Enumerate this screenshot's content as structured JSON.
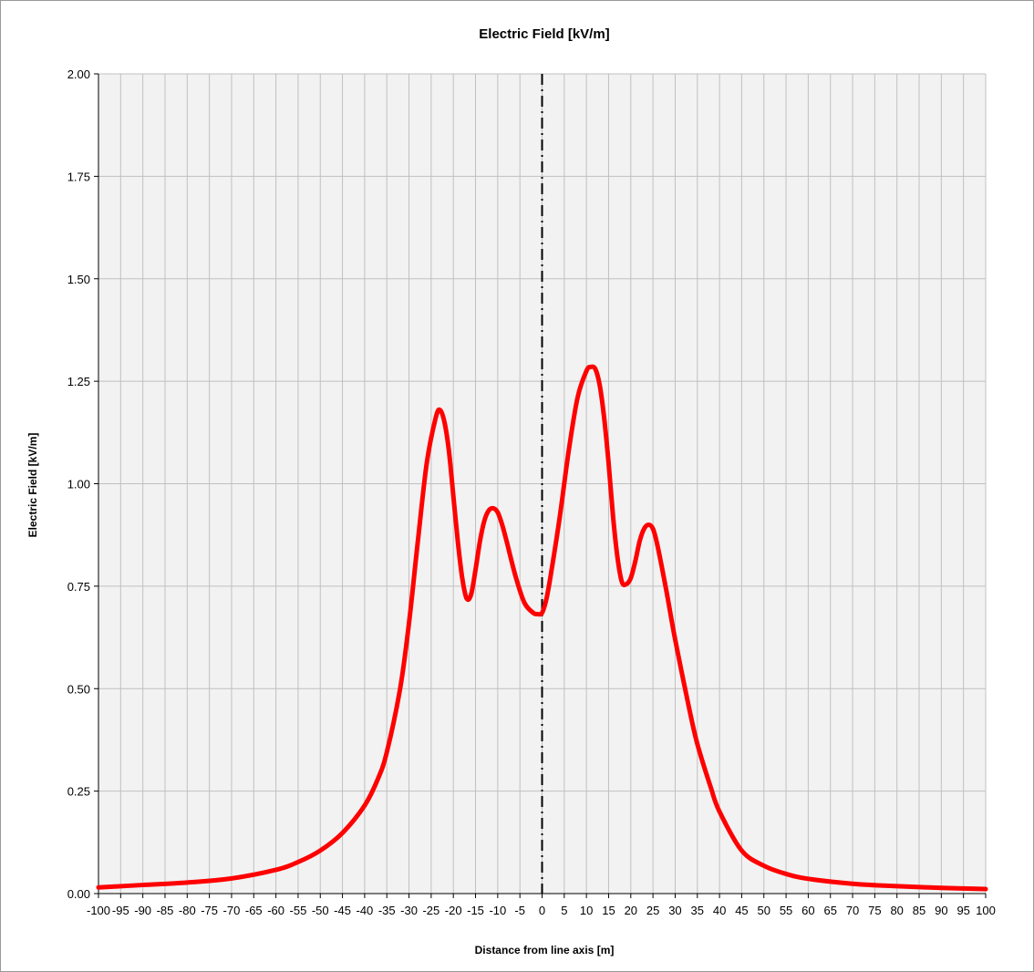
{
  "chart_data": {
    "type": "line",
    "title": "Electric Field [kV/m]",
    "xlabel": "Distance from line axis [m]",
    "ylabel": "Electric Field  [kV/m]",
    "xlim": [
      -100,
      100
    ],
    "ylim": [
      0,
      2
    ],
    "x_ticks": [
      "-100",
      "-95",
      "-90",
      "-85",
      "-80",
      "-75",
      "-70",
      "-65",
      "-60",
      "-55",
      "-50",
      "-45",
      "-40",
      "-35",
      "-30",
      "-25",
      "-20",
      "-15",
      "-10",
      "-5",
      "0",
      "5",
      "10",
      "15",
      "20",
      "25",
      "30",
      "35",
      "40",
      "45",
      "50",
      "55",
      "60",
      "65",
      "70",
      "75",
      "80",
      "85",
      "90",
      "95",
      "100"
    ],
    "y_ticks": [
      "0.00",
      "0.25",
      "0.50",
      "0.75",
      "1.00",
      "1.25",
      "1.50",
      "1.75",
      "2.00"
    ],
    "grid": true,
    "grid_x_step": 5,
    "grid_y_step": 0.25,
    "plot_background": "#f2f2f2",
    "grid_color": "#c0c0c0",
    "centerline": {
      "x": 0,
      "style": "dash-dot",
      "color": "#000000"
    },
    "series": [
      {
        "color": "#ff0000",
        "x": [
          -100,
          -90,
          -80,
          -70,
          -60,
          -55,
          -50,
          -45,
          -40,
          -37,
          -35,
          -32,
          -30,
          -28,
          -26,
          -24,
          -23,
          -22,
          -21,
          -20,
          -19,
          -18,
          -17,
          -16,
          -15,
          -14,
          -13,
          -12,
          -11,
          -10,
          -9,
          -8,
          -6,
          -4,
          -2,
          -1,
          0,
          1,
          2,
          4,
          6,
          8,
          10,
          11,
          12,
          13,
          14,
          15,
          16,
          17,
          18,
          19,
          20,
          21,
          22,
          23,
          24,
          25,
          26,
          28,
          30,
          33,
          35,
          38,
          40,
          45,
          50,
          55,
          60,
          70,
          80,
          90,
          100
        ],
        "y": [
          0.015,
          0.021,
          0.027,
          0.037,
          0.058,
          0.077,
          0.105,
          0.148,
          0.215,
          0.28,
          0.345,
          0.5,
          0.66,
          0.86,
          1.05,
          1.16,
          1.18,
          1.15,
          1.08,
          0.97,
          0.86,
          0.77,
          0.72,
          0.73,
          0.79,
          0.86,
          0.91,
          0.935,
          0.94,
          0.93,
          0.9,
          0.86,
          0.775,
          0.71,
          0.685,
          0.682,
          0.685,
          0.72,
          0.78,
          0.92,
          1.08,
          1.21,
          1.275,
          1.285,
          1.28,
          1.24,
          1.16,
          1.05,
          0.92,
          0.82,
          0.76,
          0.755,
          0.77,
          0.81,
          0.86,
          0.89,
          0.9,
          0.89,
          0.85,
          0.74,
          0.62,
          0.46,
          0.365,
          0.26,
          0.2,
          0.105,
          0.068,
          0.048,
          0.036,
          0.024,
          0.018,
          0.014,
          0.011
        ]
      }
    ]
  }
}
